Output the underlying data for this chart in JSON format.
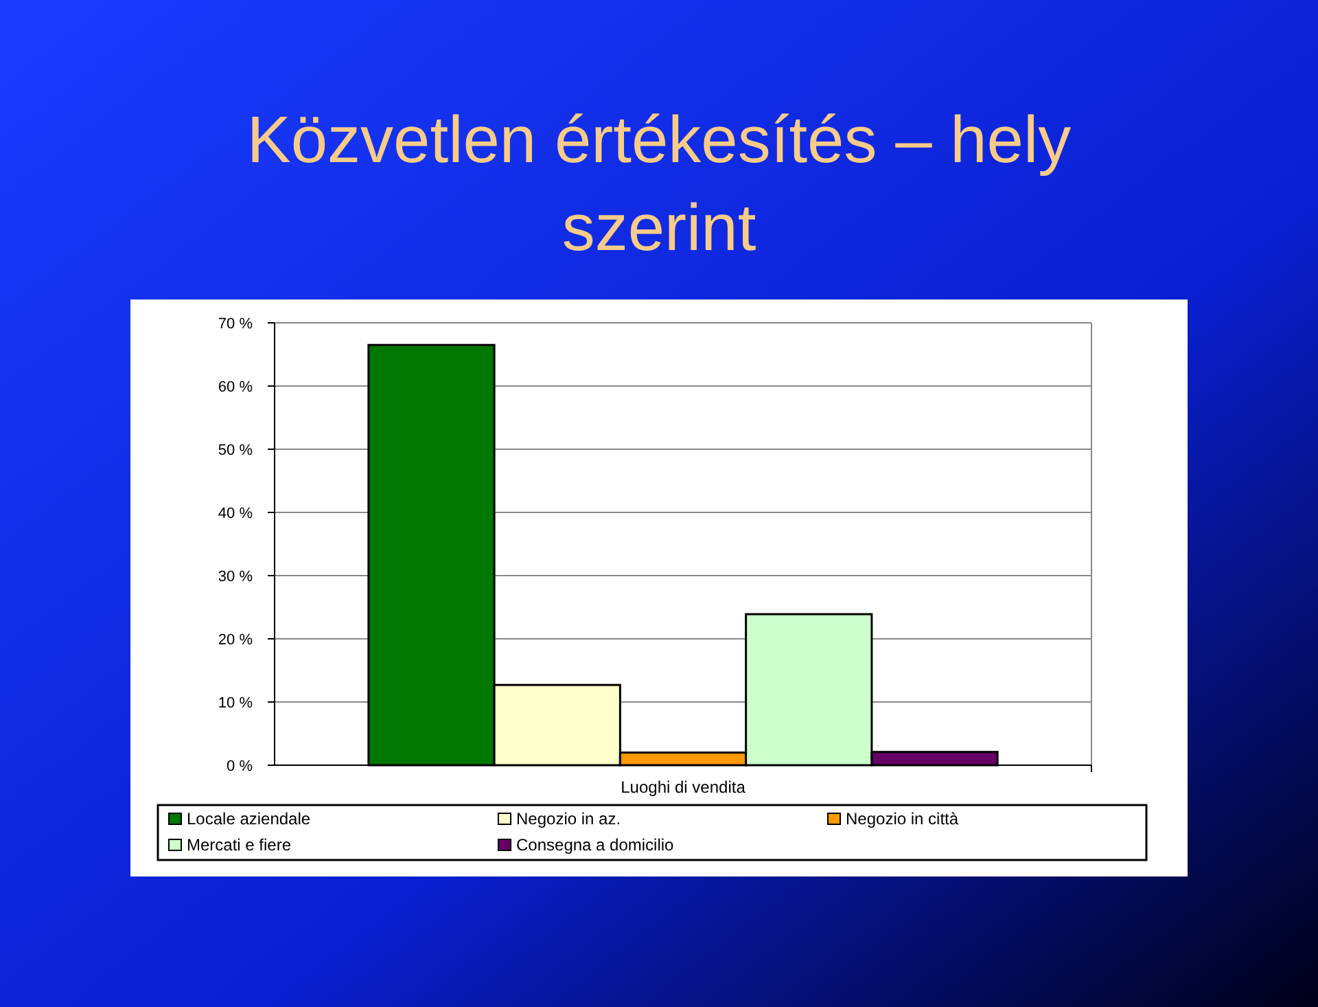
{
  "chart_data": {
    "type": "bar",
    "title": "Közvetlen értékesítés – hely szerint",
    "categories": [
      "Luoghi di vendita"
    ],
    "series": [
      {
        "name": "Locale aziendale",
        "color": "#007700",
        "values": [
          66.5
        ]
      },
      {
        "name": "Negozio in az.",
        "color": "#ffffcc",
        "values": [
          12.7
        ]
      },
      {
        "name": "Negozio in città",
        "color": "#ff9900",
        "values": [
          2.0
        ]
      },
      {
        "name": "Mercati e fiere",
        "color": "#ccffcc",
        "values": [
          23.9
        ]
      },
      {
        "name": "Consegna a domicilio",
        "color": "#660066",
        "values": [
          2.1
        ]
      }
    ],
    "ylim": [
      0,
      70
    ],
    "yticks": [
      {
        "value": 0,
        "label": "0 %"
      },
      {
        "value": 10,
        "label": "10 %"
      },
      {
        "value": 20,
        "label": "20 %"
      },
      {
        "value": 30,
        "label": "30 %"
      },
      {
        "value": 40,
        "label": "40 %"
      },
      {
        "value": 50,
        "label": "50 %"
      },
      {
        "value": 60,
        "label": "60 %"
      },
      {
        "value": 70,
        "label": "70 %"
      }
    ],
    "grid": "y",
    "legend": "bottom"
  }
}
